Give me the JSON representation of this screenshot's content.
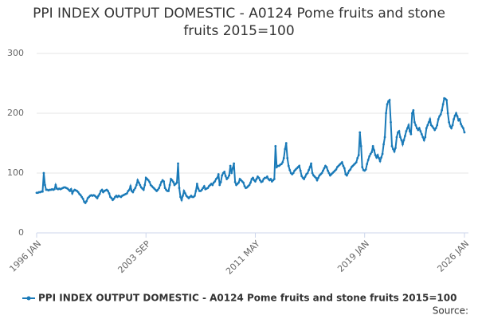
{
  "chart_data": {
    "type": "line",
    "title": "PPI INDEX OUTPUT DOMESTIC - A0124 Pome fruits and stone fruits 2015=100",
    "source": "Source:",
    "categories": [
      "1996 JAN",
      null,
      null,
      null,
      null,
      null,
      null,
      null,
      null,
      null,
      null,
      null,
      null,
      null,
      null,
      null,
      null,
      null,
      null,
      null,
      null,
      null,
      null,
      null,
      null,
      null,
      null,
      null,
      null,
      null,
      null,
      null,
      null,
      null,
      null,
      null,
      null,
      null,
      null,
      null,
      null,
      null,
      null,
      null,
      null,
      null,
      null,
      null,
      null,
      null,
      null,
      null,
      null,
      null,
      null,
      null,
      null,
      null,
      null,
      null,
      null,
      null,
      null,
      null,
      null,
      null,
      null,
      null,
      null,
      null,
      null,
      null,
      null,
      null,
      null,
      null,
      null,
      null,
      null,
      null,
      null,
      null,
      null,
      null,
      null,
      null,
      null,
      null,
      null,
      null,
      null,
      null,
      "2003 SEP",
      null,
      null,
      null,
      null,
      null,
      null,
      null,
      null,
      null,
      null,
      null,
      null,
      null,
      null,
      null,
      null,
      null,
      null,
      null,
      null,
      null,
      null,
      null,
      null,
      null,
      null,
      null,
      null,
      null,
      null,
      null,
      null,
      null,
      null,
      null,
      null,
      null,
      null,
      null,
      null,
      null,
      null,
      null,
      null,
      null,
      null,
      null,
      null,
      null,
      null,
      null,
      null,
      null,
      null,
      null,
      null,
      null,
      null,
      null,
      null,
      null,
      null,
      null,
      null,
      null,
      null,
      null,
      null,
      null,
      null,
      null,
      null,
      null,
      null,
      null,
      null,
      null,
      null,
      null,
      null,
      null,
      null,
      null,
      null,
      null,
      null,
      null,
      null,
      null,
      null,
      null,
      "2011 MAY",
      null,
      null,
      null,
      null,
      null,
      null,
      null,
      null,
      null,
      null,
      null,
      null,
      null,
      null,
      null,
      null,
      null,
      null,
      null,
      null,
      null,
      null,
      null,
      null,
      null,
      null,
      null,
      null,
      null,
      null,
      null,
      null,
      null,
      null,
      null,
      null,
      null,
      null,
      null,
      null,
      null,
      null,
      null,
      null,
      null,
      null,
      null,
      null,
      null,
      null,
      null,
      null,
      null,
      null,
      null,
      null,
      null,
      null,
      null,
      null,
      null,
      null,
      null,
      null,
      null,
      null,
      null,
      null,
      null,
      null,
      null,
      null,
      null,
      null,
      null,
      null,
      null,
      null,
      null,
      null,
      null,
      null,
      null,
      null,
      null,
      null,
      null,
      null,
      null,
      null,
      null,
      "2019 JAN",
      null,
      null,
      null,
      null,
      null,
      null,
      null,
      null,
      null,
      null,
      null,
      null,
      null,
      null,
      null,
      null,
      null,
      null,
      null,
      null,
      null,
      null,
      null,
      null,
      null,
      null,
      null,
      null,
      null,
      null,
      null,
      null,
      null,
      null,
      null,
      null,
      null,
      null,
      null,
      null,
      null,
      null,
      null,
      null,
      null,
      null,
      null,
      null,
      null,
      null,
      null,
      null,
      null,
      null,
      null,
      null,
      null,
      null,
      null,
      null,
      null,
      null,
      null,
      null,
      null,
      null,
      null,
      null,
      null,
      null,
      null,
      null,
      null,
      null,
      null,
      null,
      null,
      null,
      null,
      null,
      null,
      null,
      null,
      "2026 JAN"
    ],
    "series": [
      {
        "name": "PPI INDEX OUTPUT DOMESTIC - A0124 Pome fruits and stone fruits 2015=100",
        "color": "#1a7ab8",
        "values": [
          67,
          67,
          68,
          68,
          69,
          69,
          100,
          80,
          72,
          72,
          71,
          72,
          72,
          73,
          72,
          73,
          80,
          74,
          73,
          74,
          73,
          74,
          75,
          76,
          76,
          75,
          74,
          72,
          70,
          73,
          66,
          70,
          72,
          71,
          70,
          68,
          65,
          63,
          60,
          57,
          52,
          50,
          53,
          58,
          60,
          62,
          63,
          62,
          63,
          62,
          60,
          58,
          62,
          65,
          70,
          72,
          68,
          70,
          71,
          72,
          70,
          66,
          60,
          58,
          55,
          57,
          60,
          62,
          60,
          62,
          61,
          60,
          62,
          63,
          64,
          65,
          66,
          70,
          72,
          78,
          70,
          68,
          72,
          75,
          80,
          88,
          84,
          80,
          76,
          74,
          72,
          80,
          92,
          90,
          88,
          85,
          80,
          78,
          76,
          74,
          72,
          70,
          72,
          75,
          80,
          85,
          88,
          86,
          75,
          72,
          70,
          70,
          80,
          90,
          88,
          85,
          80,
          82,
          84,
          116,
          75,
          60,
          55,
          62,
          70,
          66,
          62,
          60,
          58,
          60,
          62,
          60,
          60,
          62,
          70,
          82,
          74,
          70,
          70,
          72,
          75,
          78,
          73,
          74,
          75,
          78,
          80,
          82,
          80,
          84,
          86,
          90,
          92,
          98,
          80,
          85,
          96,
          100,
          102,
          95,
          90,
          92,
          96,
          112,
          100,
          108,
          116,
          85,
          80,
          82,
          84,
          90,
          88,
          86,
          84,
          78,
          75,
          76,
          78,
          80,
          84,
          90,
          92,
          88,
          86,
          90,
          94,
          92,
          88,
          85,
          86,
          90,
          92,
          92,
          94,
          90,
          88,
          90,
          86,
          88,
          90,
          145,
          110,
          112,
          112,
          114,
          115,
          118,
          125,
          140,
          150,
          125,
          112,
          105,
          100,
          98,
          100,
          104,
          106,
          108,
          110,
          112,
          104,
          95,
          92,
          90,
          94,
          98,
          100,
          105,
          110,
          116,
          100,
          96,
          94,
          92,
          88,
          92,
          96,
          98,
          100,
          104,
          108,
          112,
          110,
          104,
          100,
          96,
          98,
          100,
          102,
          104,
          106,
          110,
          112,
          114,
          116,
          118,
          112,
          108,
          98,
          96,
          100,
          104,
          106,
          110,
          112,
          114,
          116,
          118,
          125,
          130,
          168,
          145,
          110,
          105,
          104,
          106,
          115,
          122,
          128,
          132,
          135,
          145,
          138,
          130,
          126,
          130,
          125,
          120,
          126,
          132,
          148,
          160,
          200,
          215,
          220,
          222,
          185,
          145,
          140,
          136,
          142,
          160,
          168,
          170,
          160,
          155,
          148,
          155,
          162,
          170,
          175,
          180,
          170,
          165,
          200,
          205,
          185,
          180,
          175,
          172,
          175,
          170,
          165,
          160,
          155,
          160,
          175,
          180,
          185,
          190,
          180,
          178,
          175,
          172,
          175,
          180,
          190,
          195,
          198,
          205,
          215,
          225,
          224,
          222,
          200,
          185,
          178,
          175,
          180,
          190,
          196,
          200,
          195,
          188,
          190,
          182,
          178,
          175,
          168
        ]
      }
    ],
    "ylim": [
      0,
      300
    ],
    "yticks": [
      0,
      100,
      200,
      300
    ],
    "grid": true
  }
}
